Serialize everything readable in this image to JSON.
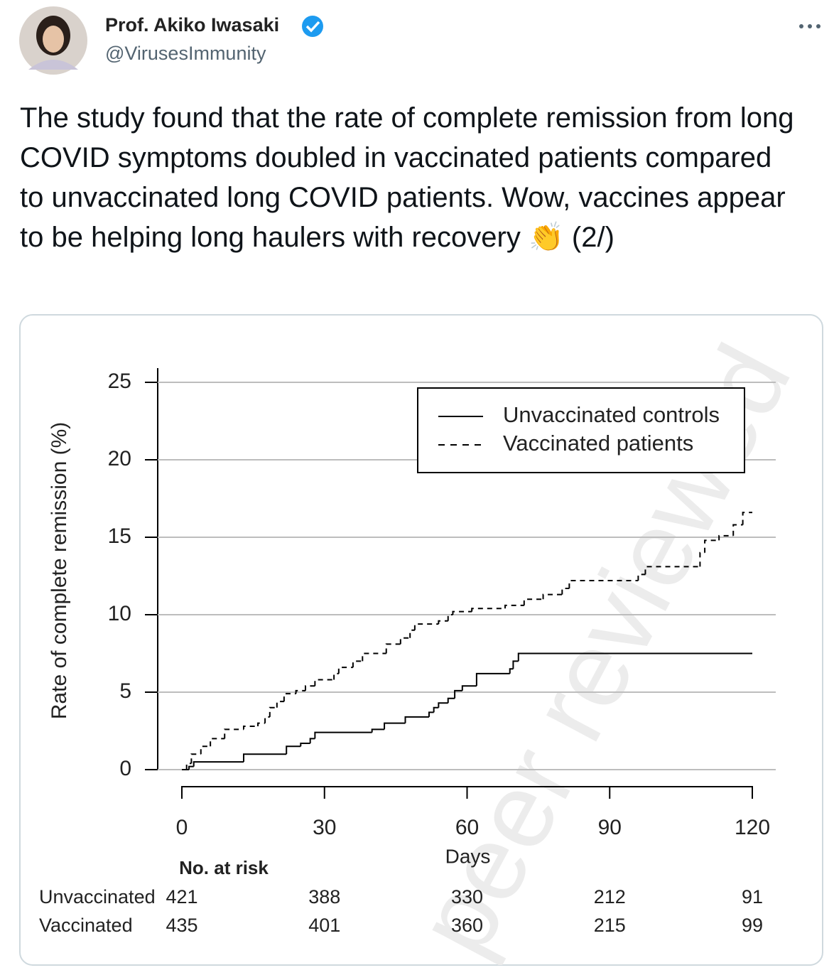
{
  "tweet": {
    "author": "Prof. Akiko Iwasaki",
    "handle": "@VirusesImmunity",
    "text": "The study found that the rate of complete remission from long COVID symptoms doubled in vaccinated patients compared to unvaccinated long COVID patients. Wow, vaccines appear to be helping long haulers with recovery 👏  (2/)"
  },
  "chart_data": {
    "type": "line",
    "step": "post",
    "xlabel": "Days",
    "ylabel": "Rate of complete remission (%)",
    "watermark": "peer reviewed",
    "xlim": [
      0,
      120
    ],
    "xticks": [
      0,
      30,
      60,
      90,
      120
    ],
    "ylim": [
      0,
      25
    ],
    "yticks": [
      0,
      5,
      10,
      15,
      20,
      25
    ],
    "grid": true,
    "legend": "upper right",
    "series": [
      {
        "name": "Unvaccinated controls",
        "color": "#000000",
        "dash": false,
        "x": [
          0,
          1.5,
          2.5,
          13,
          22,
          25,
          27,
          28,
          40,
          42.6,
          47,
          52,
          53,
          54,
          56,
          57.4,
          59,
          62,
          69,
          69.7,
          70.8,
          120
        ],
        "values": [
          0,
          0.2,
          0.5,
          1.0,
          1.5,
          1.7,
          2.0,
          2.4,
          2.6,
          3.0,
          3.4,
          3.7,
          4.0,
          4.3,
          4.6,
          5.1,
          5.4,
          6.2,
          6.5,
          7.0,
          7.5,
          7.5
        ]
      },
      {
        "name": "Vaccinated patients",
        "color": "#000000",
        "dash": true,
        "x": [
          0,
          1,
          2,
          4,
          6,
          9,
          13,
          16,
          17.5,
          18.5,
          20,
          21.5,
          24,
          26,
          28,
          32,
          33,
          36,
          38,
          43,
          46,
          48,
          49,
          54,
          56,
          57,
          61,
          68,
          72,
          76,
          80,
          81.5,
          96,
          97.5,
          109,
          110,
          113,
          116,
          118,
          120
        ],
        "values": [
          0,
          0.4,
          1.0,
          1.5,
          2.0,
          2.6,
          2.8,
          3.0,
          3.4,
          4.0,
          4.4,
          4.9,
          5.1,
          5.4,
          5.8,
          6.2,
          6.6,
          7.0,
          7.5,
          8.1,
          8.5,
          9.0,
          9.4,
          9.6,
          10.0,
          10.2,
          10.4,
          10.6,
          11.0,
          11.3,
          11.7,
          12.2,
          12.6,
          13.1,
          14.0,
          14.8,
          15.1,
          15.8,
          16.6,
          16.6
        ]
      }
    ],
    "risk_table": {
      "title": "No. at risk",
      "rows": [
        {
          "name": "Unvaccinated",
          "values": [
            421,
            388,
            330,
            212,
            91
          ]
        },
        {
          "name": "Vaccinated",
          "values": [
            435,
            401,
            360,
            215,
            99
          ]
        }
      ]
    }
  }
}
